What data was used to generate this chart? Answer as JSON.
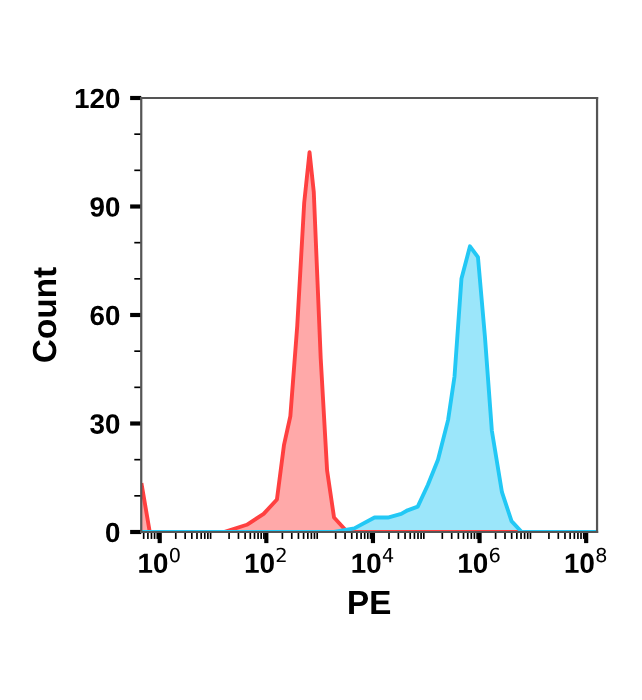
{
  "chart_data": {
    "type": "area",
    "xlabel": "PE",
    "ylabel": "Count",
    "log": "x",
    "xlim": [
      0.45,
      160000000
    ],
    "ylim": [
      0,
      120
    ],
    "xticks": [
      {
        "value": 1,
        "label": "10$^{0}$"
      },
      {
        "value": 100,
        "label": "10$^{2}$"
      },
      {
        "value": 10000,
        "label": "10$^{4}$"
      },
      {
        "value": 1000000,
        "label": "10$^{6}$"
      },
      {
        "value": 100000000,
        "label": "10$^{8}$"
      }
    ],
    "yticks": [
      0,
      30,
      60,
      90,
      120
    ],
    "grid": false,
    "legend": false,
    "series": [
      {
        "color": "#ff4040",
        "x": [
          0.46,
          0.65,
          16,
          43,
          89,
          158,
          214,
          282,
          380,
          513,
          646,
          776,
          1047,
          1380,
          1862,
          3311,
          160000000
        ],
        "values": [
          13,
          0,
          0,
          2,
          5,
          9,
          24,
          32,
          57,
          91,
          105,
          94,
          48,
          17,
          4,
          0,
          0
        ]
      },
      {
        "color": "#22c8f5",
        "x": [
          0.46,
          1862,
          4467,
          10700,
          19000,
          33900,
          44700,
          69200,
          107000,
          166000,
          257000,
          339000,
          457000,
          661000,
          933000,
          1260000,
          1700000,
          2630000,
          3980000,
          6170000,
          160000000
        ],
        "values": [
          0,
          0,
          1,
          4,
          4,
          5,
          6,
          7,
          13,
          20,
          31,
          43,
          70,
          79,
          76,
          54,
          28,
          11,
          3,
          0,
          0
        ]
      }
    ]
  }
}
